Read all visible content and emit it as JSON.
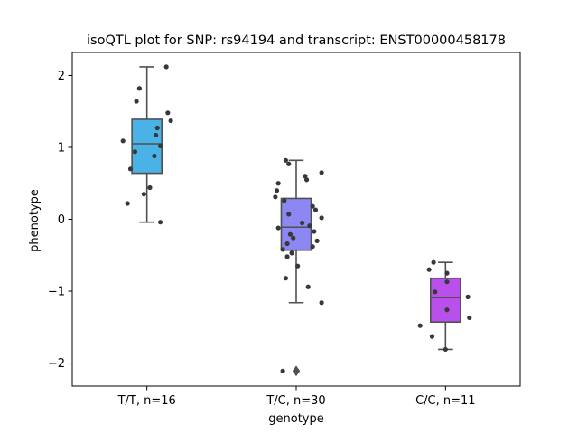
{
  "chart_data": {
    "type": "box",
    "title": "isoQTL plot for SNP: rs94194 and transcript: ENST00000458178",
    "xlabel": "genotype",
    "ylabel": "phenotype",
    "ylim": [
      -2.32,
      2.32
    ],
    "yticks": [
      2,
      1,
      0,
      -1,
      -2
    ],
    "ytick_labels": [
      "2",
      "1",
      "0",
      "−1",
      "−2"
    ],
    "grid": false,
    "categories": [
      "T/T, n=16",
      "T/C, n=30",
      "C/C, n=11"
    ],
    "colors": [
      "#4bb2e8",
      "#8c87f2",
      "#b950eb"
    ],
    "edge_color": "#505050",
    "point_color": "#383838",
    "boxes": [
      {
        "q1": 0.64,
        "median": 1.05,
        "q3": 1.39,
        "whisker_low": -0.04,
        "whisker_high": 2.12,
        "outliers": []
      },
      {
        "q1": -0.43,
        "median": -0.11,
        "q3": 0.29,
        "whisker_low": -1.16,
        "whisker_high": 0.82,
        "outliers": [
          -2.11
        ]
      },
      {
        "q1": -1.43,
        "median": -1.09,
        "q3": -0.82,
        "whisker_low": -1.81,
        "whisker_high": -0.6,
        "outliers": []
      }
    ],
    "points": [
      [
        {
          "dx": 0.13,
          "y": 2.12
        },
        {
          "dx": -0.05,
          "y": 1.82
        },
        {
          "dx": -0.07,
          "y": 1.64
        },
        {
          "dx": 0.14,
          "y": 1.48
        },
        {
          "dx": 0.16,
          "y": 1.37
        },
        {
          "dx": 0.07,
          "y": 1.27
        },
        {
          "dx": 0.06,
          "y": 1.17
        },
        {
          "dx": -0.16,
          "y": 1.09
        },
        {
          "dx": 0.09,
          "y": 1.02
        },
        {
          "dx": -0.08,
          "y": 0.94
        },
        {
          "dx": 0.05,
          "y": 0.88
        },
        {
          "dx": -0.11,
          "y": 0.7
        },
        {
          "dx": 0.02,
          "y": 0.44
        },
        {
          "dx": -0.02,
          "y": 0.35
        },
        {
          "dx": -0.13,
          "y": 0.22
        },
        {
          "dx": 0.09,
          "y": -0.04
        }
      ],
      [
        {
          "dx": -0.07,
          "y": 0.82
        },
        {
          "dx": -0.05,
          "y": 0.77
        },
        {
          "dx": 0.17,
          "y": 0.65
        },
        {
          "dx": 0.06,
          "y": 0.6
        },
        {
          "dx": 0.07,
          "y": 0.55
        },
        {
          "dx": -0.12,
          "y": 0.5
        },
        {
          "dx": -0.13,
          "y": 0.4
        },
        {
          "dx": -0.14,
          "y": 0.31
        },
        {
          "dx": -0.08,
          "y": 0.26
        },
        {
          "dx": 0.11,
          "y": 0.18
        },
        {
          "dx": 0.13,
          "y": 0.13
        },
        {
          "dx": -0.05,
          "y": 0.07
        },
        {
          "dx": 0.17,
          "y": 0.02
        },
        {
          "dx": 0.04,
          "y": -0.05
        },
        {
          "dx": 0.09,
          "y": -0.09
        },
        {
          "dx": -0.12,
          "y": -0.12
        },
        {
          "dx": 0.12,
          "y": -0.17
        },
        {
          "dx": -0.04,
          "y": -0.21
        },
        {
          "dx": -0.02,
          "y": -0.26
        },
        {
          "dx": 0.14,
          "y": -0.3
        },
        {
          "dx": -0.06,
          "y": -0.34
        },
        {
          "dx": 0.11,
          "y": -0.38
        },
        {
          "dx": -0.09,
          "y": -0.42
        },
        {
          "dx": -0.03,
          "y": -0.47
        },
        {
          "dx": -0.06,
          "y": -0.52
        },
        {
          "dx": 0.01,
          "y": -0.65
        },
        {
          "dx": -0.07,
          "y": -0.82
        },
        {
          "dx": 0.08,
          "y": -0.94
        },
        {
          "dx": 0.17,
          "y": -1.16
        },
        {
          "dx": -0.09,
          "y": -2.11
        }
      ],
      [
        {
          "dx": -0.08,
          "y": -0.6
        },
        {
          "dx": -0.11,
          "y": -0.7
        },
        {
          "dx": 0.01,
          "y": -0.75
        },
        {
          "dx": 0.01,
          "y": -0.87
        },
        {
          "dx": -0.07,
          "y": -1.01
        },
        {
          "dx": 0.15,
          "y": -1.08
        },
        {
          "dx": 0.01,
          "y": -1.26
        },
        {
          "dx": 0.16,
          "y": -1.37
        },
        {
          "dx": -0.17,
          "y": -1.48
        },
        {
          "dx": -0.09,
          "y": -1.63
        },
        {
          "dx": 0.0,
          "y": -1.81
        }
      ]
    ]
  }
}
